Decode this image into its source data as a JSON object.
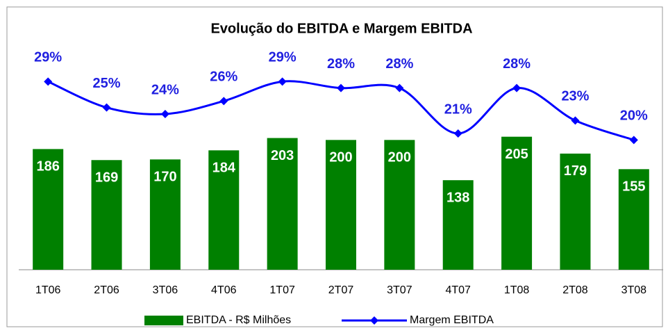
{
  "chart_data": {
    "type": "bar",
    "title": "Evolução do EBITDA e Margem EBITDA",
    "categories": [
      "1T06",
      "2T06",
      "3T06",
      "4T06",
      "1T07",
      "2T07",
      "3T07",
      "4T07",
      "1T08",
      "2T08",
      "3T08"
    ],
    "series": [
      {
        "name": "EBITDA - R$ Milhões",
        "type": "bar",
        "color": "#008000",
        "values": [
          186,
          169,
          170,
          184,
          203,
          200,
          200,
          138,
          205,
          179,
          155
        ]
      },
      {
        "name": "Margem EBITDA",
        "type": "line",
        "axis": "y2",
        "color": "#0000ff",
        "values": [
          29,
          25,
          24,
          26,
          29,
          28,
          28,
          21,
          28,
          23,
          20
        ],
        "value_labels": [
          "29%",
          "25%",
          "24%",
          "26%",
          "29%",
          "28%",
          "28%",
          "21%",
          "28%",
          "23%",
          "20%"
        ]
      }
    ],
    "ylim": [
      0,
      300
    ],
    "y2lim": [
      0,
      30
    ],
    "legend": "bottom"
  }
}
